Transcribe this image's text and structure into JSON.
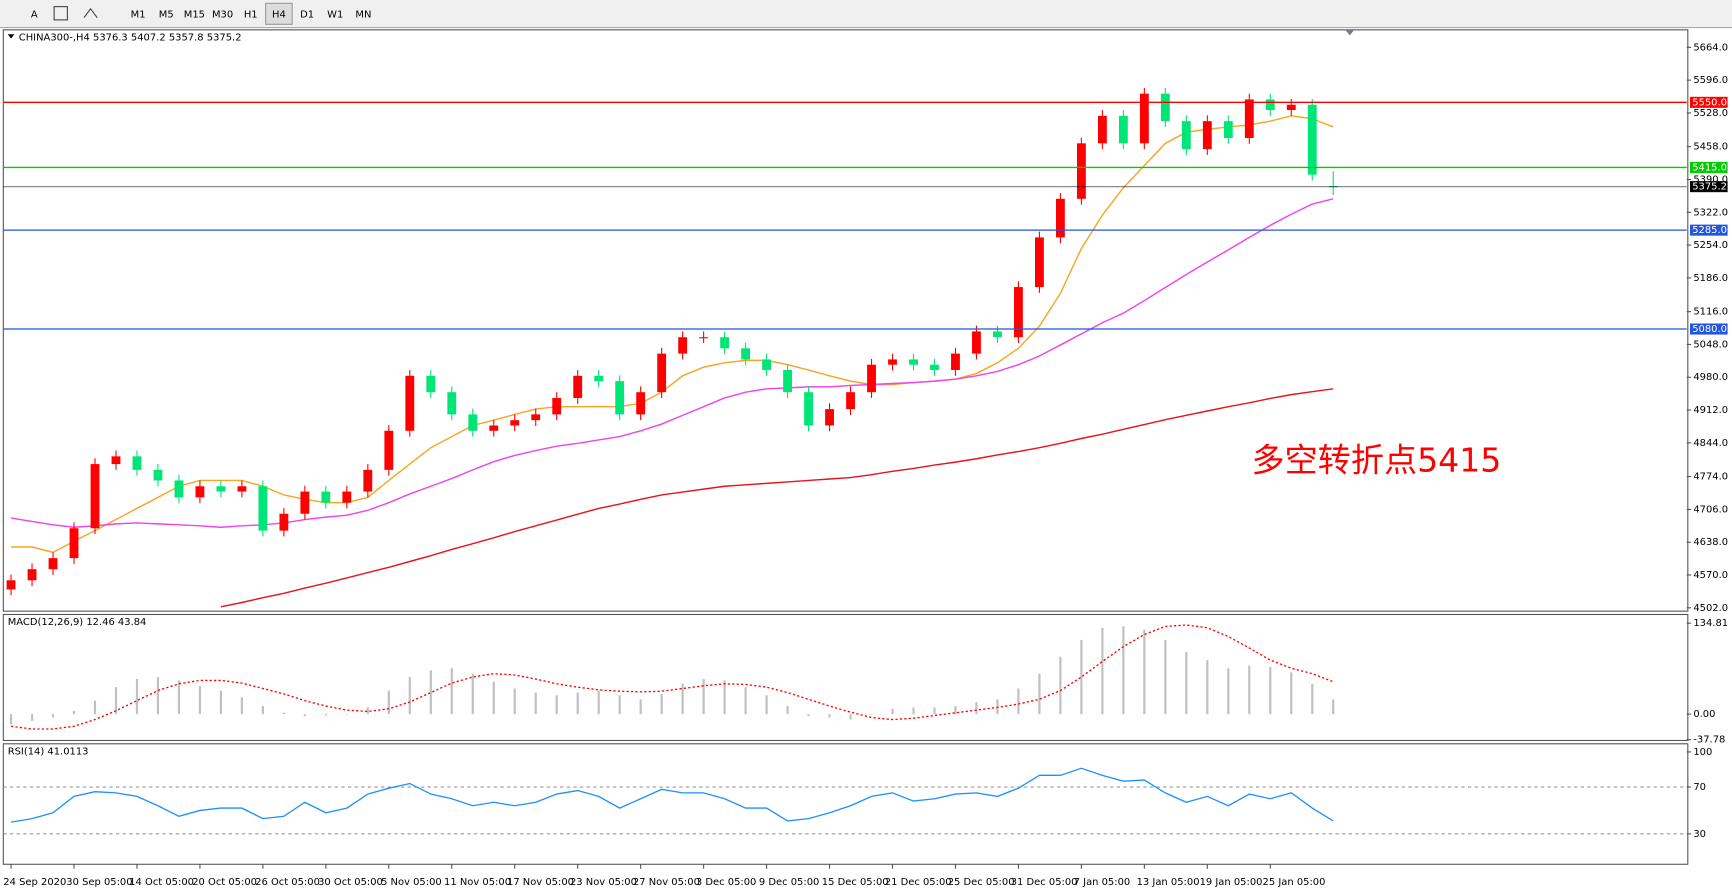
{
  "toolbar": {
    "icons": [
      "A"
    ],
    "timeframes": [
      "M1",
      "M5",
      "M15",
      "M30",
      "H1",
      "H4",
      "D1",
      "W1",
      "MN"
    ]
  },
  "chart_data": [
    {
      "type": "candlestick",
      "title": "CHINA300-,H4  5376.3 5407.2 5357.8 5375.2",
      "categories": [
        "24 Sep 2020",
        null,
        null,
        "30 Sep 05:00",
        null,
        null,
        "14 Oct 05:00",
        null,
        null,
        "20 Oct 05:00",
        null,
        null,
        "26 Oct 05:00",
        null,
        null,
        "30 Oct 05:00",
        null,
        null,
        "5 Nov 05:00",
        null,
        null,
        "11 Nov 05:00",
        null,
        null,
        "17 Nov 05:00",
        null,
        null,
        "23 Nov 05:00",
        null,
        null,
        "27 Nov 05:00",
        null,
        null,
        "3 Dec 05:00",
        null,
        null,
        "9 Dec 05:00",
        null,
        null,
        "15 Dec 05:00",
        null,
        null,
        "21 Dec 05:00",
        null,
        null,
        "25 Dec 05:00",
        null,
        null,
        "31 Dec 05:00",
        null,
        null,
        "7 Jan 05:00",
        null,
        null,
        "13 Jan 05:00",
        null,
        null,
        "19 Jan 05:00",
        null,
        null,
        "25 Jan 05:00",
        null,
        null,
        null
      ],
      "open": [
        4540,
        4559,
        4582,
        4605,
        4667,
        4800,
        4816,
        4788,
        4766,
        4731,
        4754,
        4743,
        4754,
        4662,
        4697,
        4743,
        4720,
        4743,
        4788,
        4869,
        4983,
        4949,
        4903,
        4869,
        4880,
        4891,
        4903,
        4937,
        4983,
        4972,
        4903,
        4949,
        5029,
        5063,
        5063,
        5040,
        5017,
        4995,
        4949,
        4880,
        4914,
        4949,
        5006,
        5017,
        5006,
        4995,
        5029,
        5075,
        5063,
        5167,
        5270,
        5350,
        5465,
        5522,
        5465,
        5568,
        5511,
        5453,
        5511,
        5476,
        5556,
        5534,
        5545,
        5376.3
      ],
      "high": [
        4571,
        4594,
        4617,
        4679,
        4812,
        4828,
        4828,
        4800,
        4778,
        4766,
        4766,
        4766,
        4766,
        4709,
        4755,
        4755,
        4755,
        4800,
        4881,
        4995,
        4995,
        4961,
        4915,
        4892,
        4903,
        4915,
        4949,
        4995,
        4995,
        4984,
        4961,
        5041,
        5075,
        5075,
        5075,
        5052,
        5029,
        5007,
        4961,
        4926,
        4961,
        5018,
        5029,
        5029,
        5018,
        5041,
        5087,
        5087,
        5179,
        5282,
        5362,
        5477,
        5534,
        5534,
        5580,
        5580,
        5523,
        5523,
        5523,
        5568,
        5568,
        5557,
        5557,
        5407.2
      ],
      "low": [
        4528,
        4547,
        4570,
        4593,
        4655,
        4788,
        4776,
        4754,
        4719,
        4719,
        4731,
        4731,
        4650,
        4650,
        4685,
        4708,
        4708,
        4731,
        4776,
        4857,
        4937,
        4891,
        4857,
        4857,
        4868,
        4879,
        4891,
        4925,
        4960,
        4891,
        4891,
        4937,
        5017,
        5051,
        5028,
        5005,
        4983,
        4937,
        4868,
        4868,
        4902,
        4937,
        4994,
        4994,
        4983,
        4983,
        5017,
        5051,
        5051,
        5155,
        5258,
        5338,
        5453,
        5453,
        5453,
        5499,
        5441,
        5441,
        5464,
        5464,
        5522,
        5522,
        5388,
        5357.8
      ],
      "close": [
        4559,
        4582,
        4605,
        4667,
        4800,
        4816,
        4788,
        4766,
        4731,
        4754,
        4743,
        4754,
        4662,
        4697,
        4743,
        4720,
        4743,
        4788,
        4869,
        4983,
        4949,
        4903,
        4869,
        4880,
        4891,
        4903,
        4937,
        4983,
        4972,
        4903,
        4949,
        5029,
        5063,
        5063,
        5040,
        5017,
        4995,
        4949,
        4880,
        4914,
        4949,
        5006,
        5017,
        5006,
        4995,
        5029,
        5075,
        5063,
        5167,
        5270,
        5350,
        5465,
        5522,
        5465,
        5568,
        5511,
        5453,
        5511,
        5476,
        5556,
        5534,
        5545,
        5400,
        5375.2
      ],
      "up_color": "#ff0000",
      "down_color": "#00e676",
      "lines": [
        {
          "color": "#f5a623",
          "values": [
            4628,
            4628,
            4617,
            4640,
            4662,
            4685,
            4708,
            4731,
            4754,
            4766,
            4766,
            4766,
            4754,
            4736,
            4727,
            4720,
            4720,
            4731,
            4766,
            4800,
            4834,
            4857,
            4880,
            4891,
            4903,
            4914,
            4919,
            4919,
            4919,
            4919,
            4926,
            4949,
            4983,
            5001,
            5010,
            5015,
            5015,
            5006,
            4995,
            4983,
            4972,
            4965,
            4965,
            4969,
            4972,
            4976,
            4988,
            5010,
            5040,
            5086,
            5154,
            5247,
            5316,
            5373,
            5419,
            5465,
            5488,
            5494,
            5499,
            5503,
            5511,
            5522,
            5516,
            5499
          ]
        },
        {
          "color": "#ee44ee",
          "values": [
            4688,
            4681,
            4674,
            4669,
            4672,
            4676,
            4678,
            4676,
            4674,
            4672,
            4669,
            4672,
            4674,
            4678,
            4685,
            4690,
            4694,
            4704,
            4720,
            4738,
            4754,
            4770,
            4788,
            4805,
            4818,
            4828,
            4837,
            4843,
            4850,
            4857,
            4869,
            4883,
            4901,
            4919,
            4937,
            4949,
            4956,
            4958,
            4960,
            4960,
            4963,
            4965,
            4967,
            4969,
            4972,
            4976,
            4983,
            4992,
            5006,
            5024,
            5047,
            5070,
            5093,
            5113,
            5139,
            5166,
            5193,
            5219,
            5244,
            5270,
            5295,
            5318,
            5339,
            5350
          ]
        },
        {
          "color": "#e8141b",
          "values": [
            null,
            null,
            null,
            null,
            null,
            null,
            null,
            null,
            null,
            null,
            4504,
            4513,
            4523,
            4532,
            4543,
            4553,
            4564,
            4575,
            4586,
            4598,
            4610,
            4623,
            4635,
            4647,
            4660,
            4672,
            4684,
            4696,
            4708,
            4717,
            4727,
            4736,
            4742,
            4748,
            4754,
            4757,
            4760,
            4763,
            4766,
            4769,
            4772,
            4778,
            4785,
            4791,
            4798,
            4804,
            4811,
            4819,
            4826,
            4834,
            4843,
            4853,
            4862,
            4872,
            4882,
            4892,
            4901,
            4910,
            4919,
            4927,
            4936,
            4944,
            4950,
            4956
          ]
        }
      ],
      "hlines": [
        {
          "value": 5550,
          "label": "5550.0",
          "color": "#ff0000"
        },
        {
          "value": 5415,
          "label": "5415.0",
          "color": "#00cc00"
        },
        {
          "value": 5375.2,
          "label": "5375.2",
          "color": "#000000"
        },
        {
          "value": 5285,
          "label": "5285.0",
          "color": "#2255dd"
        },
        {
          "value": 5080,
          "label": "5080.0",
          "color": "#2255dd"
        }
      ],
      "annotation": {
        "text": "多空转折点5415",
        "color": "#ff0000"
      },
      "ylim": [
        4495,
        5698
      ],
      "yticks": [
        {
          "value": 5664,
          "label": "5664.0"
        },
        {
          "value": 5596,
          "label": "5596.0"
        },
        {
          "value": 5528,
          "label": "5528.0"
        },
        {
          "value": 5458,
          "label": "5458.0"
        },
        {
          "value": 5390,
          "label": "5390.0"
        },
        {
          "value": 5322,
          "label": "5322.0"
        },
        {
          "value": 5254,
          "label": "5254.0"
        },
        {
          "value": 5186,
          "label": "5186.0"
        },
        {
          "value": 5116,
          "label": "5116.0"
        },
        {
          "value": 5048,
          "label": "5048.0"
        },
        {
          "value": 4980,
          "label": "4980.0"
        },
        {
          "value": 4912,
          "label": "4912.0"
        },
        {
          "value": 4844,
          "label": "4844.0"
        },
        {
          "value": 4774,
          "label": "4774.0"
        },
        {
          "value": 4706,
          "label": "4706.0"
        },
        {
          "value": 4638,
          "label": "4638.0"
        },
        {
          "value": 4570,
          "label": "4570.0"
        },
        {
          "value": 4502,
          "label": "4502.0"
        }
      ]
    },
    {
      "type": "macd",
      "title": "MACD(12,26,9) 12.46 43.84",
      "histogram": {
        "color": "#c0c0c0",
        "values": [
          -15,
          -10,
          -5,
          5,
          20,
          40,
          52,
          55,
          50,
          42,
          35,
          25,
          12,
          2,
          -3,
          -2,
          0,
          10,
          35,
          55,
          65,
          68,
          60,
          48,
          38,
          32,
          28,
          32,
          35,
          28,
          22,
          30,
          45,
          52,
          50,
          40,
          28,
          12,
          -3,
          -5,
          -8,
          0,
          8,
          10,
          10,
          12,
          18,
          22,
          38,
          60,
          85,
          110,
          128,
          130,
          125,
          110,
          92,
          80,
          68,
          72,
          70,
          62,
          45,
          22
        ]
      },
      "signal": {
        "color": "#ff0000",
        "values": [
          -18,
          -22,
          -22,
          -18,
          -8,
          5,
          20,
          35,
          45,
          50,
          50,
          46,
          38,
          30,
          20,
          12,
          6,
          4,
          8,
          18,
          32,
          46,
          55,
          60,
          58,
          52,
          45,
          40,
          36,
          34,
          33,
          34,
          38,
          42,
          45,
          44,
          40,
          32,
          22,
          12,
          3,
          -5,
          -8,
          -6,
          -2,
          2,
          6,
          10,
          15,
          22,
          35,
          55,
          78,
          100,
          118,
          130,
          132,
          128,
          115,
          98,
          80,
          68,
          60,
          48
        ]
      },
      "ylim": [
        -39,
        146
      ],
      "yticks": [
        {
          "value": 134.81,
          "label": "134.81"
        },
        {
          "value": 0,
          "label": "0.00"
        },
        {
          "value": -37.78,
          "label": "-37.78"
        }
      ]
    },
    {
      "type": "line",
      "title": "RSI(14) 41.0113",
      "color": "#1e90ff",
      "values": [
        40,
        43,
        48,
        62,
        66,
        65,
        62,
        54,
        45,
        50,
        52,
        52,
        43,
        45,
        57,
        48,
        52,
        64,
        69,
        73,
        64,
        60,
        54,
        57,
        54,
        57,
        64,
        67,
        62,
        52,
        60,
        68,
        65,
        65,
        60,
        52,
        52,
        41,
        43,
        48,
        54,
        62,
        65,
        58,
        60,
        64,
        65,
        62,
        69,
        80,
        80,
        86,
        80,
        75,
        76,
        65,
        57,
        62,
        54,
        64,
        60,
        65,
        52,
        41.0113
      ],
      "levels": [
        70,
        30
      ],
      "ylim": [
        4,
        106
      ],
      "yticks": [
        100,
        70,
        30
      ]
    }
  ]
}
